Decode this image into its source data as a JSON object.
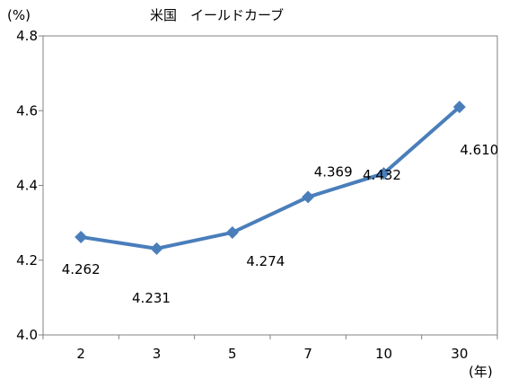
{
  "chart_data": {
    "type": "line",
    "title": "米国　イールドカーブ",
    "y_unit_label": "(%)",
    "x_unit_label": "(年)",
    "categories": [
      "2",
      "3",
      "5",
      "7",
      "10",
      "30"
    ],
    "series": [
      {
        "values": [
          4.262,
          4.231,
          4.274,
          4.369,
          4.432,
          4.61
        ],
        "data_labels": [
          "4.262",
          "4.231",
          "4.274",
          "4.369",
          "4.432",
          "4.610"
        ],
        "color": "#4a7ebb",
        "marker": "diamond"
      }
    ],
    "y_ticks": [
      "4.0",
      "4.2",
      "4.4",
      "4.6",
      "4.8"
    ],
    "ylim": [
      4.0,
      4.8
    ],
    "grid": false,
    "legend": "none"
  }
}
